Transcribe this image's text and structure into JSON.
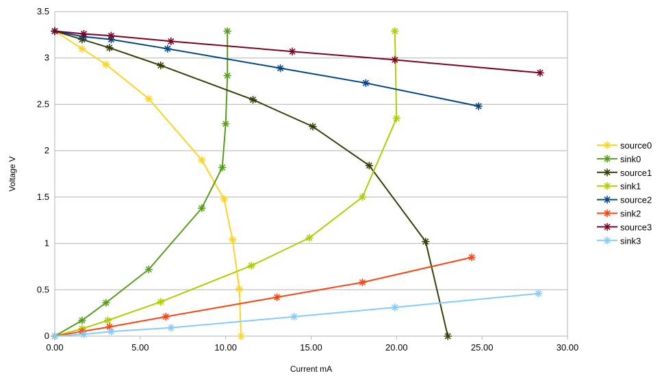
{
  "chart_data": {
    "type": "scatter",
    "xlabel": "Current mA",
    "ylabel": "Voltage V",
    "xlim": [
      0,
      30
    ],
    "ylim": [
      0,
      3.5
    ],
    "x_ticks": [
      "0.00",
      "5.00",
      "10.00",
      "15.00",
      "20.00",
      "25.00",
      "30.00"
    ],
    "y_ticks": [
      "0",
      "0.5",
      "1",
      "1.5",
      "2",
      "2.5",
      "3",
      "3.5"
    ],
    "grid": "horizontal",
    "legend_position": "right",
    "series": [
      {
        "name": "source0",
        "color": "#ffd320",
        "points": [
          [
            0,
            3.29
          ],
          [
            1.6,
            3.1
          ],
          [
            3.0,
            2.93
          ],
          [
            5.5,
            2.56
          ],
          [
            8.6,
            1.9
          ],
          [
            9.9,
            1.48
          ],
          [
            10.4,
            1.04
          ],
          [
            10.8,
            0.51
          ],
          [
            10.9,
            0
          ]
        ]
      },
      {
        "name": "sink0",
        "color": "#579d1c",
        "points": [
          [
            0,
            0
          ],
          [
            1.6,
            0.17
          ],
          [
            3.0,
            0.36
          ],
          [
            5.5,
            0.72
          ],
          [
            8.6,
            1.38
          ],
          [
            9.8,
            1.82
          ],
          [
            10.0,
            2.29
          ],
          [
            10.1,
            2.81
          ],
          [
            10.1,
            3.29
          ]
        ]
      },
      {
        "name": "source1",
        "color": "#314004",
        "points": [
          [
            0,
            3.29
          ],
          [
            1.6,
            3.2
          ],
          [
            3.2,
            3.11
          ],
          [
            6.2,
            2.92
          ],
          [
            11.6,
            2.55
          ],
          [
            15.1,
            2.26
          ],
          [
            18.4,
            1.84
          ],
          [
            21.7,
            1.02
          ],
          [
            23.0,
            0
          ]
        ]
      },
      {
        "name": "sink1",
        "color": "#aecf00",
        "points": [
          [
            0,
            0
          ],
          [
            1.6,
            0.08
          ],
          [
            3.1,
            0.17
          ],
          [
            6.2,
            0.37
          ],
          [
            11.5,
            0.76
          ],
          [
            14.9,
            1.06
          ],
          [
            18.0,
            1.5
          ],
          [
            20.0,
            2.35
          ],
          [
            19.9,
            3.29
          ]
        ]
      },
      {
        "name": "source2",
        "color": "#004586",
        "points": [
          [
            0,
            3.29
          ],
          [
            1.7,
            3.23
          ],
          [
            3.3,
            3.2
          ],
          [
            6.6,
            3.1
          ],
          [
            13.2,
            2.89
          ],
          [
            18.2,
            2.73
          ],
          [
            24.8,
            2.48
          ]
        ]
      },
      {
        "name": "sink2",
        "color": "#ff420e",
        "points": [
          [
            0,
            0
          ],
          [
            1.6,
            0.05
          ],
          [
            3.2,
            0.1
          ],
          [
            6.5,
            0.21
          ],
          [
            13.0,
            0.42
          ],
          [
            18.0,
            0.58
          ],
          [
            24.4,
            0.85
          ]
        ]
      },
      {
        "name": "source3",
        "color": "#7e0021",
        "points": [
          [
            0,
            3.29
          ],
          [
            1.7,
            3.26
          ],
          [
            3.3,
            3.24
          ],
          [
            6.8,
            3.18
          ],
          [
            13.9,
            3.07
          ],
          [
            19.9,
            2.98
          ],
          [
            28.4,
            2.84
          ]
        ]
      },
      {
        "name": "sink3",
        "color": "#83caff",
        "points": [
          [
            0,
            0
          ],
          [
            1.7,
            0.02
          ],
          [
            3.3,
            0.05
          ],
          [
            6.8,
            0.09
          ],
          [
            14.0,
            0.21
          ],
          [
            19.9,
            0.31
          ],
          [
            28.3,
            0.46
          ]
        ]
      }
    ]
  }
}
